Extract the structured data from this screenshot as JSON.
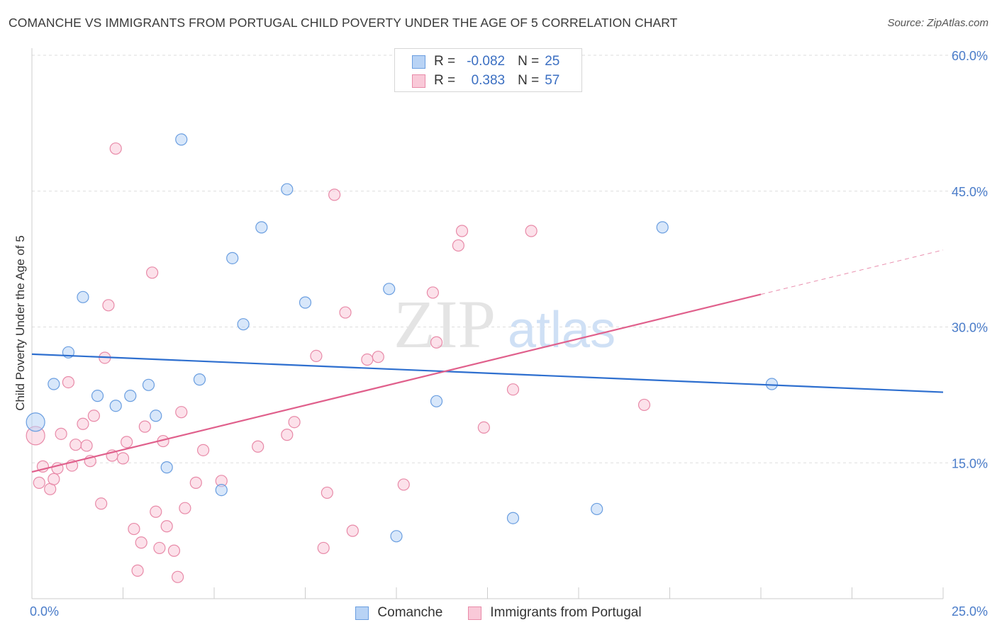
{
  "header": {
    "title": "COMANCHE VS IMMIGRANTS FROM PORTUGAL CHILD POVERTY UNDER THE AGE OF 5 CORRELATION CHART",
    "source": "Source: ZipAtlas.com"
  },
  "watermark": {
    "zip": "ZIP",
    "atlas": "atlas"
  },
  "legend": {
    "rows": [
      {
        "r_label": "R =",
        "r_value": "-0.082",
        "n_label": "N =",
        "n_value": "25"
      },
      {
        "r_label": "R =",
        "r_value": "0.383",
        "n_label": "N =",
        "n_value": "57"
      }
    ]
  },
  "bottom_legend": {
    "series1": "Comanche",
    "series2": "Immigrants from Portugal"
  },
  "colors": {
    "blue_fill": "#b8d3f5",
    "blue_stroke": "#6a9ee0",
    "blue_line": "#2e6fcf",
    "pink_fill": "#f9c9d8",
    "pink_stroke": "#e88aa8",
    "pink_line": "#e0608c",
    "grid": "#dddddd",
    "tick_text": "#4a7cc9"
  },
  "chart_data": {
    "type": "scatter",
    "title": "COMANCHE VS IMMIGRANTS FROM PORTUGAL CHILD POVERTY UNDER THE AGE OF 5 CORRELATION CHART",
    "xlabel": "",
    "ylabel": "Child Poverty Under the Age of 5",
    "xlim": [
      0,
      25
    ],
    "ylim": [
      0,
      60
    ],
    "x_tick_labels": [
      "0.0%",
      "25.0%"
    ],
    "y_ticks": [
      15,
      30,
      45,
      60
    ],
    "y_tick_labels": [
      "15.0%",
      "30.0%",
      "45.0%",
      "60.0%"
    ],
    "grid": true,
    "series": [
      {
        "name": "Comanche",
        "r": -0.082,
        "n": 25,
        "points": [
          [
            0.1,
            19.5
          ],
          [
            0.6,
            23.7
          ],
          [
            1.0,
            27.2
          ],
          [
            1.4,
            33.3
          ],
          [
            1.8,
            22.4
          ],
          [
            2.3,
            21.3
          ],
          [
            2.7,
            22.4
          ],
          [
            3.2,
            23.6
          ],
          [
            3.4,
            20.2
          ],
          [
            3.7,
            14.5
          ],
          [
            4.1,
            50.7
          ],
          [
            4.6,
            24.2
          ],
          [
            5.2,
            12.0
          ],
          [
            5.5,
            37.6
          ],
          [
            5.8,
            30.3
          ],
          [
            6.3,
            41.0
          ],
          [
            7.0,
            45.2
          ],
          [
            7.5,
            32.7
          ],
          [
            9.8,
            34.2
          ],
          [
            11.1,
            21.8
          ],
          [
            13.2,
            8.9
          ],
          [
            15.5,
            9.9
          ],
          [
            17.3,
            41.0
          ],
          [
            20.3,
            23.7
          ],
          [
            10.0,
            6.9
          ]
        ],
        "trend": {
          "x": [
            0,
            25
          ],
          "y": [
            27.0,
            22.8
          ]
        }
      },
      {
        "name": "Immigrants from Portugal",
        "r": 0.383,
        "n": 57,
        "points": [
          [
            0.1,
            18.0
          ],
          [
            0.2,
            12.8
          ],
          [
            0.3,
            14.6
          ],
          [
            0.5,
            12.1
          ],
          [
            0.6,
            13.2
          ],
          [
            0.7,
            14.4
          ],
          [
            0.8,
            18.2
          ],
          [
            1.0,
            23.9
          ],
          [
            1.1,
            14.7
          ],
          [
            1.2,
            17.0
          ],
          [
            1.4,
            19.3
          ],
          [
            1.5,
            16.9
          ],
          [
            1.6,
            15.2
          ],
          [
            1.7,
            20.2
          ],
          [
            1.9,
            10.5
          ],
          [
            2.0,
            26.6
          ],
          [
            2.1,
            32.4
          ],
          [
            2.2,
            15.8
          ],
          [
            2.3,
            49.7
          ],
          [
            2.5,
            15.5
          ],
          [
            2.6,
            17.3
          ],
          [
            2.8,
            7.7
          ],
          [
            3.0,
            6.2
          ],
          [
            3.1,
            19.0
          ],
          [
            3.3,
            36.0
          ],
          [
            3.4,
            9.6
          ],
          [
            3.5,
            5.6
          ],
          [
            3.6,
            17.4
          ],
          [
            3.7,
            8.0
          ],
          [
            3.9,
            5.3
          ],
          [
            4.0,
            2.4
          ],
          [
            4.1,
            20.6
          ],
          [
            4.2,
            10.0
          ],
          [
            4.5,
            12.8
          ],
          [
            4.7,
            16.4
          ],
          [
            5.2,
            13.0
          ],
          [
            6.2,
            16.8
          ],
          [
            7.0,
            18.1
          ],
          [
            7.2,
            19.5
          ],
          [
            7.8,
            26.8
          ],
          [
            8.0,
            5.6
          ],
          [
            8.1,
            11.7
          ],
          [
            8.3,
            44.6
          ],
          [
            8.6,
            31.6
          ],
          [
            8.8,
            7.5
          ],
          [
            9.2,
            26.4
          ],
          [
            9.5,
            26.7
          ],
          [
            10.2,
            12.6
          ],
          [
            11.0,
            33.8
          ],
          [
            11.1,
            28.3
          ],
          [
            11.7,
            39.0
          ],
          [
            11.8,
            40.6
          ],
          [
            12.4,
            18.9
          ],
          [
            13.2,
            23.1
          ],
          [
            13.7,
            40.6
          ],
          [
            16.8,
            21.4
          ],
          [
            2.9,
            3.1
          ]
        ],
        "trend": {
          "x": [
            0,
            20
          ],
          "y": [
            14.0,
            33.6
          ],
          "dashed_x": [
            20,
            25
          ],
          "dashed_y": [
            33.6,
            38.5
          ]
        }
      }
    ]
  }
}
